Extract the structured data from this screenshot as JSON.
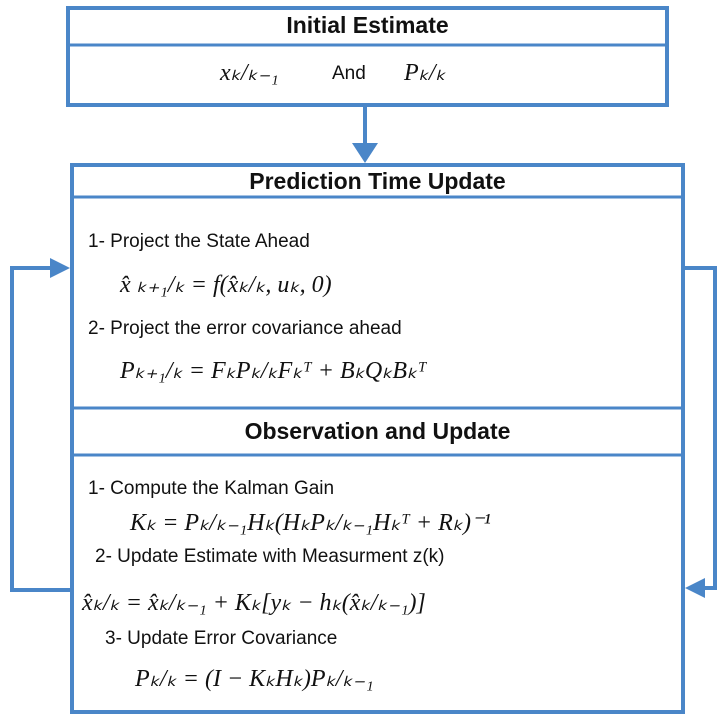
{
  "initial": {
    "title": "Initial Estimate",
    "terms": [
      "xₖ/ₖ₋₁",
      "And",
      "Pₖ/ₖ"
    ]
  },
  "prediction": {
    "title": "Prediction Time Update",
    "steps": [
      {
        "label": "1- Project the State Ahead",
        "equation": "x̂ ₖ₊₁/ₖ = f(x̂ₖ/ₖ, uₖ, 0)"
      },
      {
        "label": "2- Project the error covariance ahead",
        "equation": "Pₖ₊₁/ₖ = FₖPₖ/ₖFₖᵀ + BₖQₖBₖᵀ"
      }
    ]
  },
  "observation": {
    "title": "Observation and Update",
    "steps": [
      {
        "label": "1- Compute the Kalman Gain",
        "equation": "Kₖ = Pₖ/ₖ₋₁Hₖ(HₖPₖ/ₖ₋₁Hₖᵀ + Rₖ)⁻¹"
      },
      {
        "label": "2- Update Estimate with Measurment z(k)",
        "equation": "x̂ₖ/ₖ = x̂ₖ/ₖ₋₁ + Kₖ[yₖ − hₖ(x̂ₖ/ₖ₋₁)]"
      },
      {
        "label": "3- Update Error Covariance",
        "equation": "Pₖ/ₖ = (I − KₖHₖ)Pₖ/ₖ₋₁"
      }
    ]
  }
}
